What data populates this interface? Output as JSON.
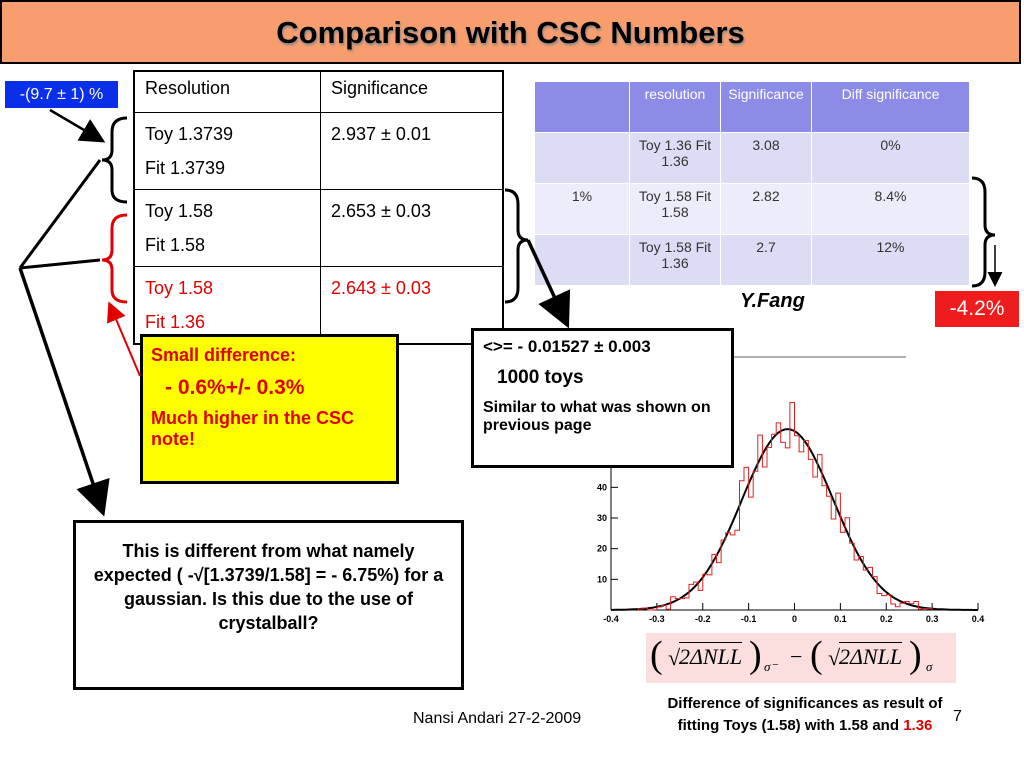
{
  "title": "Comparison with CSC Numbers",
  "left_badge": "-(9.7 ± 1) %",
  "left_table": {
    "headers": [
      "Resolution",
      "Significance"
    ],
    "rows": [
      {
        "res": [
          "Toy 1.3739",
          "Fit 1.3739"
        ],
        "sig": "2.937 ± 0.01",
        "red": false
      },
      {
        "res": [
          "Toy 1.58",
          "Fit  1.58"
        ],
        "sig": "2.653 ± 0.03",
        "red": false
      },
      {
        "res": [
          "Toy 1.58",
          "Fit 1.36"
        ],
        "sig": "2.643 ± 0.03",
        "red": true
      }
    ]
  },
  "right_table": {
    "headers": [
      "",
      "resolution",
      "Significance",
      "Diff significance"
    ],
    "rows": [
      [
        "",
        "Toy 1.36 Fit 1.36",
        "3.08",
        "0%"
      ],
      [
        "1%",
        "Toy 1.58 Fit 1.58",
        "2.82",
        "8.4%"
      ],
      [
        "",
        "Toy 1.58 Fit 1.36",
        "2.7",
        "12%"
      ]
    ]
  },
  "author": "Y.Fang",
  "right_badge": "-4.2%",
  "yellow_box": {
    "line1": "Small difference:",
    "line2": " - 0.6%+/- 0.3%",
    "line3": "Much higher in the CSC note!"
  },
  "mid_box": {
    "line1": "<>= - 0.01527 ± 0.003",
    "line2": "1000 toys",
    "line3": "Similar to what was shown on previous page"
  },
  "bottom_box": "This is different from what namely expected ( -√[1.3739/1.58] = - 6.75%) for a gaussian. Is this due to the use of crystalball?",
  "histogram": {
    "x_ticks": [
      "-0.4",
      "-0.3",
      "-0.2",
      "-0.1",
      "0",
      "0.1",
      "0.2",
      "0.3",
      "0.4"
    ],
    "y_ticks": [
      "10",
      "20",
      "30",
      "40"
    ],
    "xlim": [
      -0.4,
      0.4
    ],
    "ylim": [
      0,
      75
    ],
    "gauss_mean": -0.015,
    "gauss_sigma": 0.1,
    "gauss_peak": 59,
    "line_color": "#e02020"
  },
  "formula": {
    "term1": "2ΔNLL",
    "sub1": "σ⁻",
    "minus": "−",
    "term2": "2ΔNLL",
    "sub2": "σ"
  },
  "caption": {
    "text": "Difference of significances as result of fitting Toys (1.58) with 1.58 and ",
    "red_part": "1.36"
  },
  "footer": "Nansi Andari 27-2-2009",
  "page_number": "7"
}
